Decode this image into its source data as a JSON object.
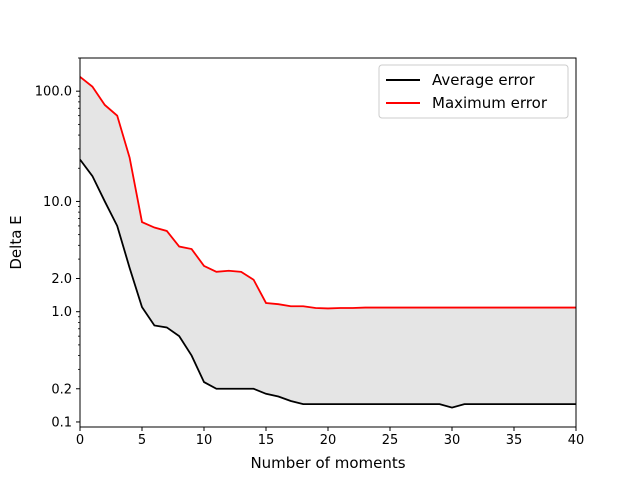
{
  "chart_data": {
    "type": "line",
    "title": "",
    "xlabel": "Number of moments",
    "ylabel": "Delta E",
    "xlim": [
      0,
      40
    ],
    "ylim": [
      0.09,
      200
    ],
    "yscale": "log",
    "grid": false,
    "legend_position": "top-right",
    "fill_between_series": true,
    "x_ticks": [
      0,
      5,
      10,
      15,
      20,
      25,
      30,
      35,
      40
    ],
    "x_tick_labels": [
      "0",
      "5",
      "10",
      "15",
      "20",
      "25",
      "30",
      "35",
      "40"
    ],
    "y_ticks": [
      0.1,
      0.2,
      1.0,
      2.0,
      10.0,
      100.0
    ],
    "y_tick_labels": [
      "0.1",
      "0.2",
      "1.0",
      "2.0",
      "10.0",
      "100.0"
    ],
    "x": [
      0,
      1,
      2,
      3,
      4,
      5,
      6,
      7,
      8,
      9,
      10,
      11,
      12,
      13,
      14,
      15,
      16,
      17,
      18,
      19,
      20,
      21,
      22,
      23,
      24,
      25,
      26,
      27,
      28,
      29,
      30,
      31,
      32,
      33,
      34,
      35,
      36,
      37,
      38,
      39,
      40
    ],
    "series": [
      {
        "name": "Average error",
        "color": "#000000",
        "values": [
          24,
          17,
          10,
          6,
          2.5,
          1.1,
          0.75,
          0.72,
          0.6,
          0.4,
          0.23,
          0.2,
          0.2,
          0.2,
          0.2,
          0.18,
          0.17,
          0.155,
          0.145,
          0.145,
          0.145,
          0.145,
          0.145,
          0.145,
          0.145,
          0.145,
          0.145,
          0.145,
          0.145,
          0.145,
          0.135,
          0.145,
          0.145,
          0.145,
          0.145,
          0.145,
          0.145,
          0.145,
          0.145,
          0.145,
          0.145
        ]
      },
      {
        "name": "Maximum error",
        "color": "#ff0000",
        "values": [
          135,
          110,
          75,
          60,
          25,
          6.5,
          5.8,
          5.4,
          3.9,
          3.7,
          2.6,
          2.3,
          2.35,
          2.3,
          1.95,
          1.2,
          1.17,
          1.12,
          1.12,
          1.08,
          1.07,
          1.08,
          1.08,
          1.09,
          1.09,
          1.09,
          1.09,
          1.09,
          1.09,
          1.09,
          1.09,
          1.09,
          1.09,
          1.09,
          1.09,
          1.09,
          1.09,
          1.09,
          1.09,
          1.09,
          1.09
        ]
      }
    ],
    "fill_color": "#e5e5e5"
  }
}
